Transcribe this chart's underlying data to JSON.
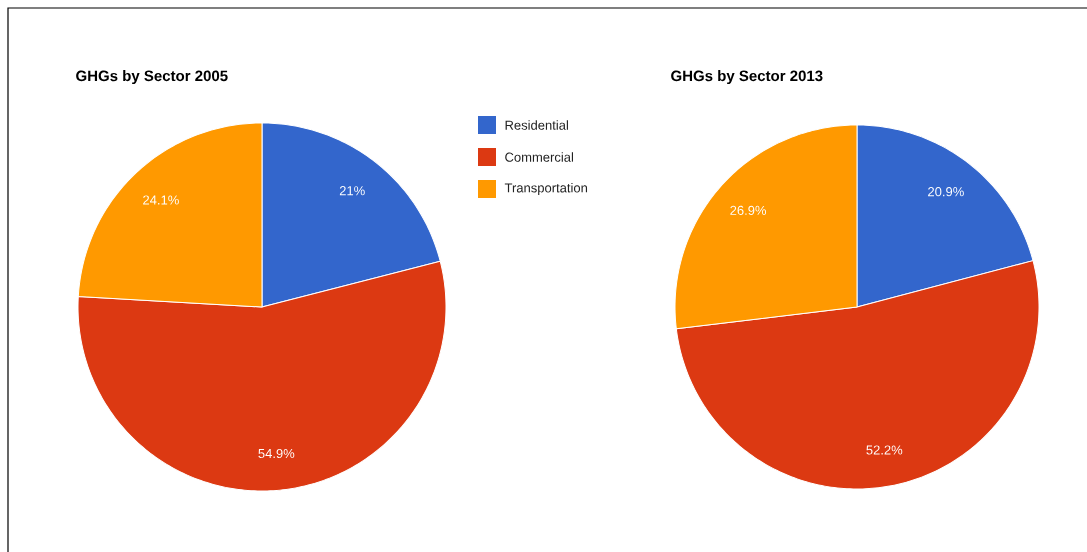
{
  "chart_data": [
    {
      "type": "pie",
      "title": "GHGs by Sector 2005",
      "categories": [
        "Residential",
        "Commercial",
        "Transportation"
      ],
      "values": [
        21,
        54.9,
        24.1
      ],
      "value_labels": [
        "21%",
        "54.9%",
        "24.1%"
      ],
      "colors": [
        "#3366cc",
        "#dc3912",
        "#ff9900"
      ],
      "legend": "right"
    },
    {
      "type": "pie",
      "title": "GHGs by Sector 2013",
      "categories": [
        null,
        null,
        null
      ],
      "values": [
        20.9,
        52.2,
        26.9
      ],
      "value_labels": [
        "20.9%",
        "52.2%",
        "26.9%"
      ],
      "colors": [
        "#3366cc",
        "#dc3912",
        "#ff9900"
      ]
    }
  ]
}
